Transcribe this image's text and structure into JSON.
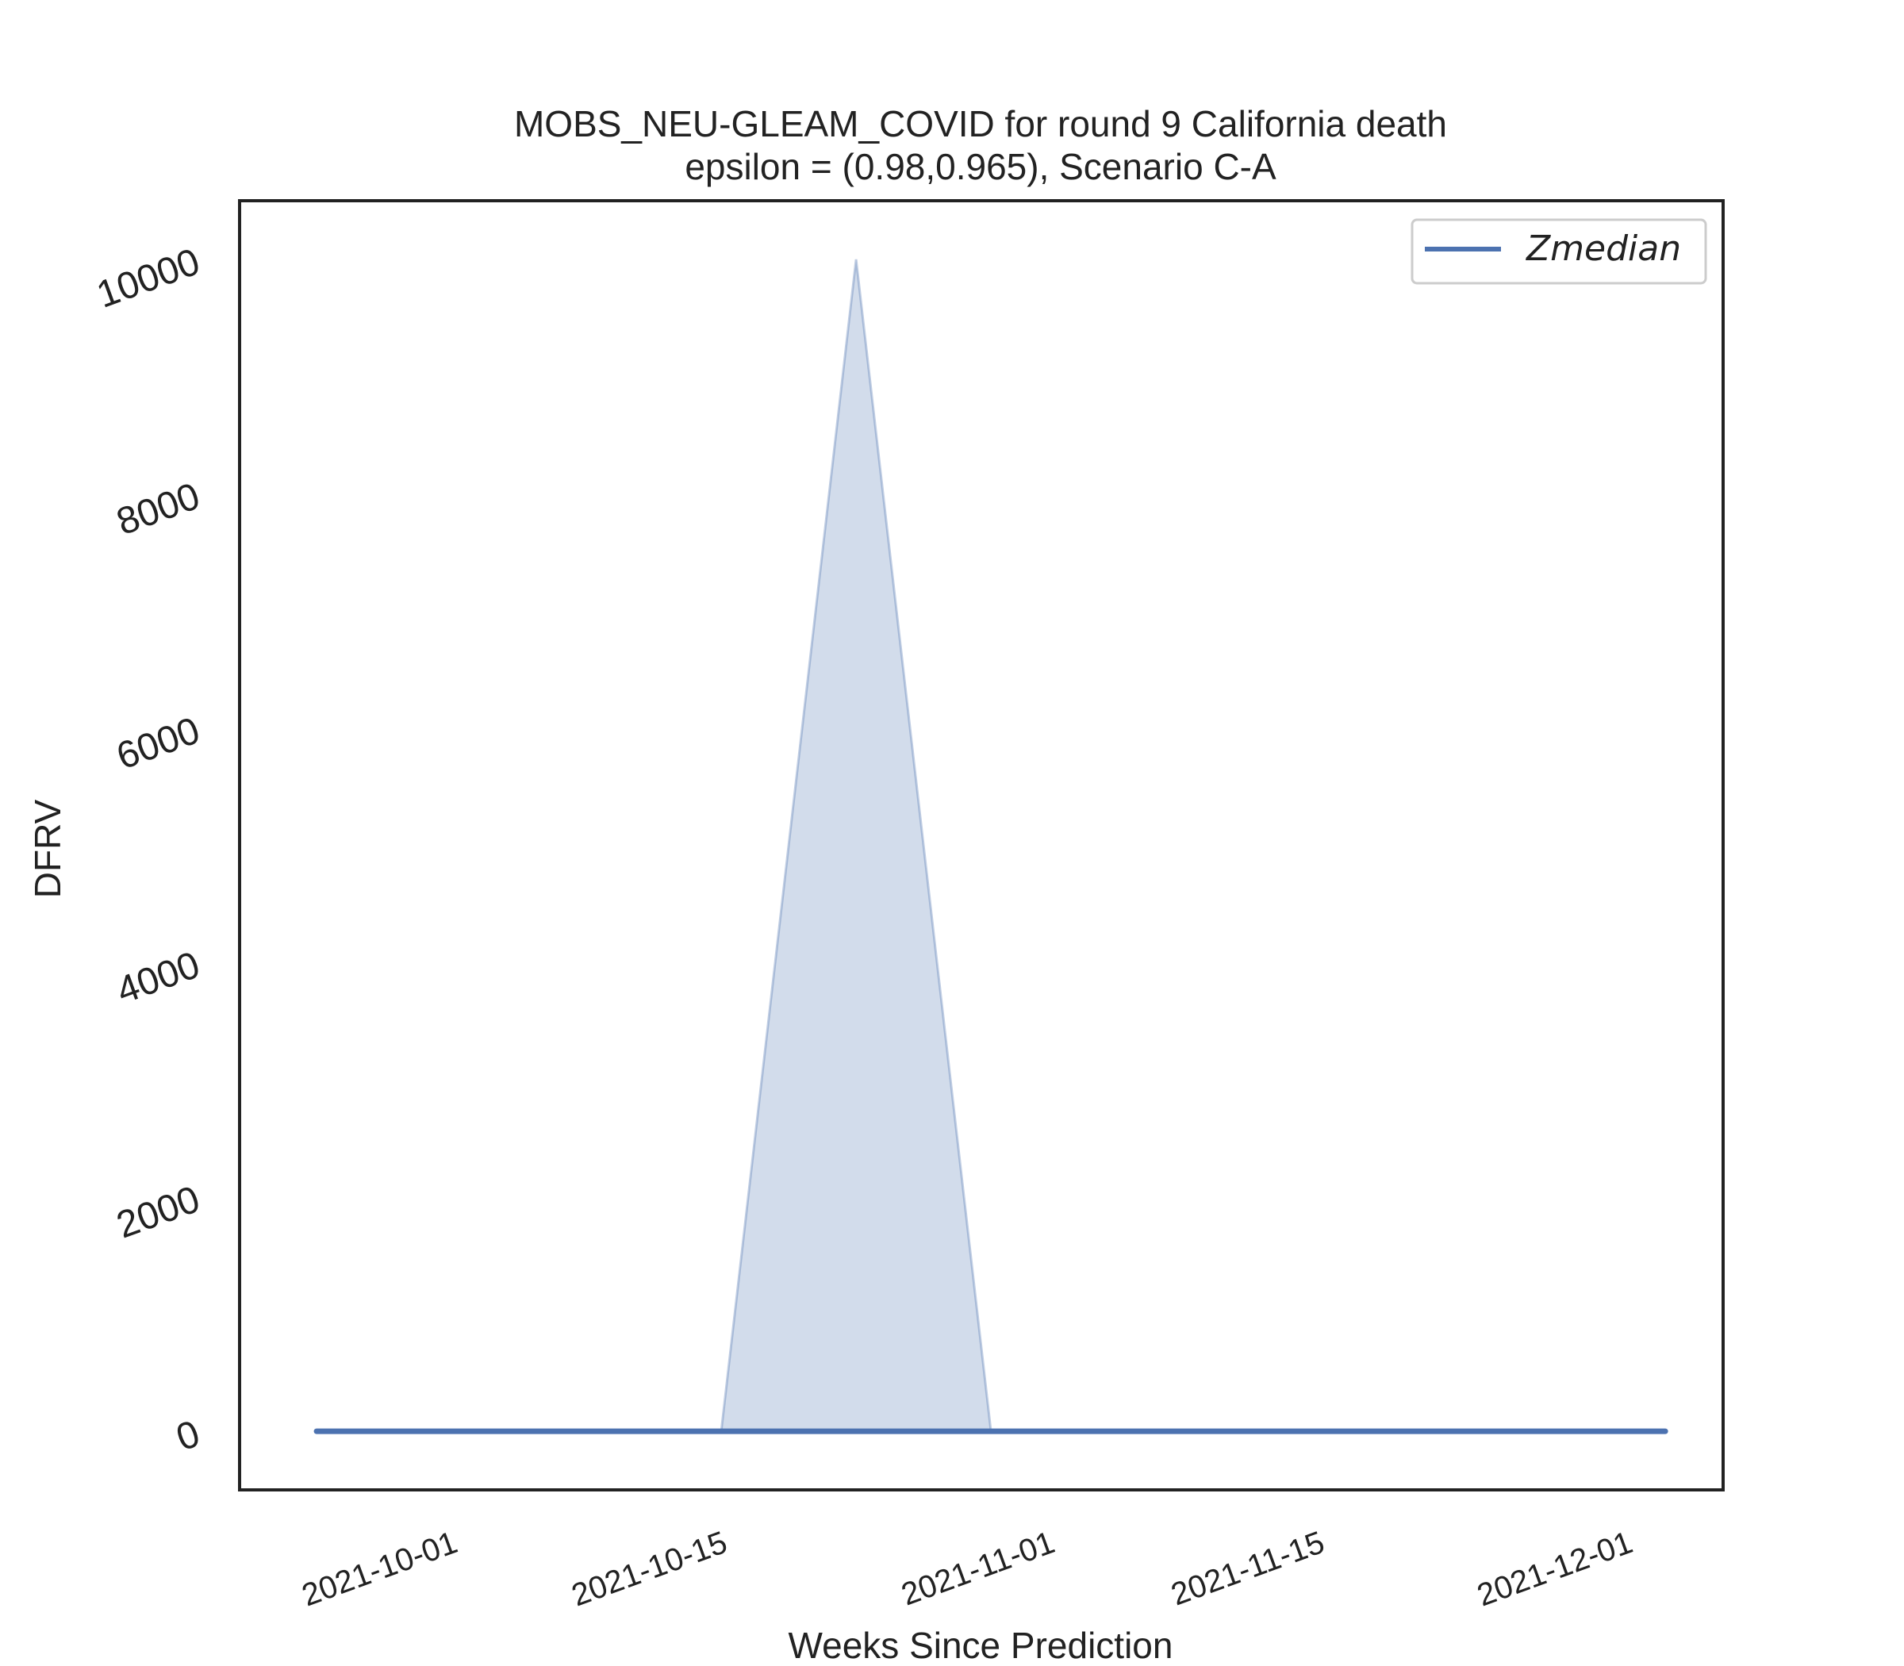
{
  "chart_data": {
    "type": "area",
    "title": "MOBS_NEU-GLEAM_COVID for round 9 California  death",
    "subtitle": "epsilon = (0.98,0.965), Scenario C-A",
    "xlabel": "Weeks Since Prediction",
    "ylabel": "DFRV",
    "x_ticks": [
      "2021-10-01",
      "2021-10-15",
      "2021-11-01",
      "2021-11-15",
      "2021-12-01"
    ],
    "y_ticks": [
      0,
      2000,
      4000,
      6000,
      8000,
      10000
    ],
    "xlim": [
      "2021-09-20",
      "2021-12-06"
    ],
    "ylim": [
      -500,
      10500
    ],
    "grid": false,
    "legend_position": "top-right",
    "series": [
      {
        "name": "Zmedian",
        "color": "#4c72b0",
        "x": [
          "2021-09-24",
          "2021-10-01",
          "2021-10-08",
          "2021-10-15",
          "2021-10-22",
          "2021-10-29",
          "2021-11-05",
          "2021-11-12",
          "2021-11-19",
          "2021-11-26",
          "2021-12-03"
        ],
        "y": [
          0,
          0,
          0,
          0,
          0,
          0,
          0,
          0,
          0,
          0,
          0
        ]
      }
    ],
    "band": {
      "color": "#4c72b0",
      "opacity": 0.25,
      "x": [
        "2021-10-15",
        "2021-10-22",
        "2021-10-29"
      ],
      "lower": [
        0,
        0,
        0
      ],
      "upper": [
        0,
        10000,
        0
      ]
    }
  }
}
